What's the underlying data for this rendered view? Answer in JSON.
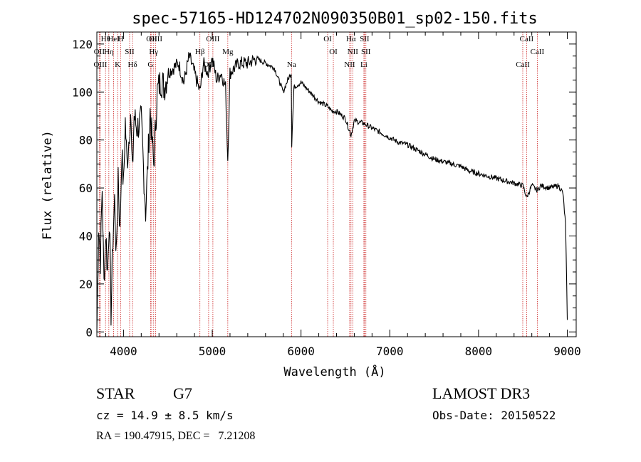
{
  "chart_data": {
    "type": "line",
    "title": "spec-57165-HD124702N090350B01_sp02-150.fits",
    "xlabel": "Wavelength (Å)",
    "ylabel": "Flux (relative)",
    "xlim": [
      3700,
      9100
    ],
    "ylim": [
      -2,
      125
    ],
    "x_ticks": [
      4000,
      5000,
      6000,
      7000,
      8000,
      9000
    ],
    "y_ticks": [
      0,
      20,
      40,
      60,
      80,
      100,
      120
    ],
    "series": [
      {
        "name": "spectrum",
        "x": [
          3700,
          3720,
          3740,
          3760,
          3780,
          3800,
          3820,
          3840,
          3860,
          3880,
          3900,
          3920,
          3940,
          3960,
          3980,
          4000,
          4020,
          4040,
          4060,
          4080,
          4100,
          4120,
          4150,
          4200,
          4250,
          4300,
          4340,
          4380,
          4420,
          4460,
          4500,
          4560,
          4620,
          4680,
          4740,
          4800,
          4861,
          4900,
          4950,
          5000,
          5050,
          5100,
          5150,
          5175,
          5200,
          5250,
          5300,
          5400,
          5500,
          5600,
          5700,
          5800,
          5850,
          5890,
          5895,
          5920,
          6000,
          6100,
          6200,
          6300,
          6350,
          6400,
          6500,
          6563,
          6600,
          6700,
          6800,
          6900,
          7000,
          7100,
          7200,
          7300,
          7400,
          7500,
          7600,
          7700,
          7800,
          7900,
          8000,
          8100,
          8200,
          8300,
          8400,
          8500,
          8542,
          8600,
          8662,
          8700,
          8800,
          8900,
          8950,
          8980,
          9000
        ],
        "y": [
          0,
          45,
          30,
          60,
          20,
          42,
          25,
          48,
          8,
          38,
          55,
          30,
          68,
          40,
          75,
          60,
          88,
          70,
          80,
          92,
          65,
          90,
          85,
          88,
          50,
          92,
          70,
          100,
          105,
          102,
          108,
          110,
          112,
          104,
          115,
          108,
          100,
          112,
          108,
          114,
          105,
          108,
          102,
          72,
          108,
          110,
          112,
          112,
          114,
          112,
          110,
          100,
          105,
          108,
          78,
          102,
          104,
          100,
          96,
          94,
          92,
          92,
          89,
          82,
          88,
          87,
          85,
          83,
          81,
          79,
          78,
          76,
          74,
          72,
          71,
          70,
          69,
          67,
          66,
          65,
          64,
          63,
          62,
          61,
          56,
          61,
          59,
          61,
          60,
          61,
          58,
          45,
          5
        ]
      }
    ],
    "lines": [
      {
        "label": "Hθ",
        "wave": 3798
      },
      {
        "label": "OII",
        "wave": 3727
      },
      {
        "label": "OIII",
        "wave": 3740
      },
      {
        "label": "HeI",
        "wave": 3889
      },
      {
        "label": "Hη",
        "wave": 3835
      },
      {
        "label": "K",
        "wave": 3934
      },
      {
        "label": "H",
        "wave": 3968
      },
      {
        "label": "SII",
        "wave": 4069
      },
      {
        "label": "Hδ",
        "wave": 4102
      },
      {
        "label": "OII",
        "wave": 4317
      },
      {
        "label": "Hγ",
        "wave": 4340
      },
      {
        "label": "G",
        "wave": 4305
      },
      {
        "label": "OIII",
        "wave": 4363
      },
      {
        "label": "Hβ",
        "wave": 4861
      },
      {
        "label": "OII",
        "wave": 4959
      },
      {
        "label": "OIII",
        "wave": 5007
      },
      {
        "label": "Mg",
        "wave": 5175
      },
      {
        "label": "Na",
        "wave": 5893
      },
      {
        "label": "OI",
        "wave": 6300
      },
      {
        "label": "OI",
        "wave": 6364
      },
      {
        "label": "NII",
        "wave": 6548
      },
      {
        "label": "Hα",
        "wave": 6563
      },
      {
        "label": "NII",
        "wave": 6583
      },
      {
        "label": "Li",
        "wave": 6708
      },
      {
        "label": "SII",
        "wave": 6716
      },
      {
        "label": "SII",
        "wave": 6731
      },
      {
        "label": "CaII",
        "wave": 8498
      },
      {
        "label": "CaII",
        "wave": 8542
      },
      {
        "label": "CaII",
        "wave": 8662
      }
    ]
  },
  "info": {
    "object_class": "STAR",
    "subclass": "G7",
    "survey": "LAMOST DR3",
    "cz_line": "cz = 14.9 ± 8.5 km/s",
    "obs_date": "Obs-Date: 20150522",
    "coords": "RA = 190.47915, DEC =   7.21208"
  },
  "colors": {
    "line_marker": "#cc2222",
    "spectrum": "#000000"
  }
}
